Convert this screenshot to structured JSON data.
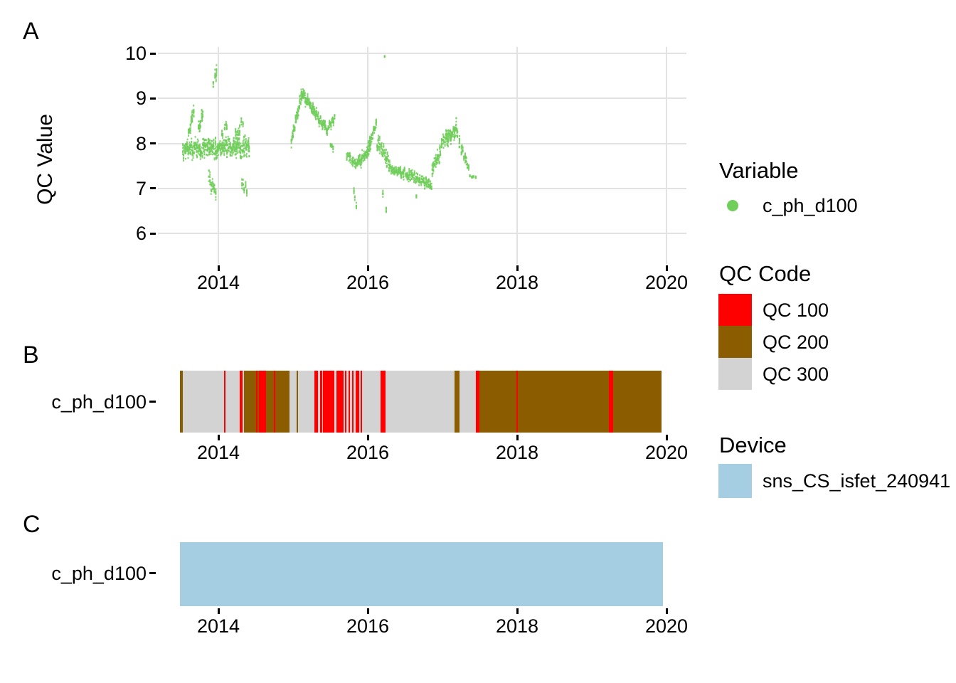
{
  "figure": {
    "panel_labels": [
      "A",
      "B",
      "C"
    ],
    "background": "#FFFFFF",
    "grid_color": "#E2E2E2",
    "tick_color": "#000000"
  },
  "chart_data": [
    {
      "id": "A",
      "type": "scatter",
      "title": "",
      "ylabel": "QC Value",
      "xlabel": "",
      "series_name": "c_ph_d100",
      "point_color": "#70CE5A",
      "x_ticks": [
        2014,
        2016,
        2018,
        2020
      ],
      "y_ticks": [
        6,
        7,
        8,
        9,
        10
      ],
      "x_data_range": [
        2013.52,
        2017.45
      ],
      "y_data_range": [
        6.35,
        9.97
      ],
      "grid": "major-only",
      "legend_position": "right",
      "clusters": [
        {
          "x0": 2013.52,
          "x1": 2014.42,
          "y0": 7.87,
          "y1": 7.92,
          "s": 0.2,
          "n": 650
        },
        {
          "x0": 2013.6,
          "x1": 2013.68,
          "y0": 8.25,
          "y1": 8.7,
          "s": 0.15,
          "n": 45
        },
        {
          "x0": 2013.73,
          "x1": 2013.8,
          "y0": 8.3,
          "y1": 8.75,
          "s": 0.15,
          "n": 40
        },
        {
          "x0": 2013.87,
          "x1": 2013.97,
          "y0": 7.25,
          "y1": 6.8,
          "s": 0.18,
          "n": 45
        },
        {
          "x0": 2013.93,
          "x1": 2013.99,
          "y0": 9.35,
          "y1": 9.7,
          "s": 0.15,
          "n": 25
        },
        {
          "x0": 2014.04,
          "x1": 2014.12,
          "y0": 8.15,
          "y1": 8.4,
          "s": 0.12,
          "n": 30
        },
        {
          "x0": 2014.22,
          "x1": 2014.33,
          "y0": 8.15,
          "y1": 8.5,
          "s": 0.14,
          "n": 40
        },
        {
          "x0": 2014.3,
          "x1": 2014.4,
          "y0": 7.15,
          "y1": 6.9,
          "s": 0.15,
          "n": 28
        },
        {
          "x0": 2014.97,
          "x1": 2015.12,
          "y0": 8.0,
          "y1": 9.15,
          "s": 0.12,
          "n": 110
        },
        {
          "x0": 2015.12,
          "x1": 2015.32,
          "y0": 9.1,
          "y1": 8.6,
          "s": 0.14,
          "n": 140
        },
        {
          "x0": 2015.32,
          "x1": 2015.46,
          "y0": 8.6,
          "y1": 8.3,
          "s": 0.12,
          "n": 90
        },
        {
          "x0": 2015.47,
          "x1": 2015.56,
          "y0": 8.35,
          "y1": 8.55,
          "s": 0.1,
          "n": 45
        },
        {
          "x0": 2015.5,
          "x1": 2015.54,
          "y0": 7.95,
          "y1": 7.9,
          "s": 0.08,
          "n": 15
        },
        {
          "x0": 2015.72,
          "x1": 2015.86,
          "y0": 7.75,
          "y1": 7.55,
          "s": 0.13,
          "n": 70
        },
        {
          "x0": 2015.8,
          "x1": 2015.85,
          "y0": 7.0,
          "y1": 6.6,
          "s": 0.1,
          "n": 15
        },
        {
          "x0": 2015.86,
          "x1": 2016.04,
          "y0": 7.5,
          "y1": 7.95,
          "s": 0.14,
          "n": 120
        },
        {
          "x0": 2016.0,
          "x1": 2016.12,
          "y0": 7.95,
          "y1": 8.45,
          "s": 0.12,
          "n": 70
        },
        {
          "x0": 2016.21,
          "x1": 2016.23,
          "y0": 9.95,
          "y1": 9.93,
          "s": 0.02,
          "n": 4
        },
        {
          "x0": 2016.12,
          "x1": 2016.3,
          "y0": 8.05,
          "y1": 7.5,
          "s": 0.18,
          "n": 110
        },
        {
          "x0": 2016.2,
          "x1": 2016.25,
          "y0": 6.9,
          "y1": 6.45,
          "s": 0.1,
          "n": 12
        },
        {
          "x0": 2016.3,
          "x1": 2016.62,
          "y0": 7.45,
          "y1": 7.25,
          "s": 0.11,
          "n": 190
        },
        {
          "x0": 2016.62,
          "x1": 2016.86,
          "y0": 7.25,
          "y1": 7.05,
          "s": 0.11,
          "n": 130
        },
        {
          "x0": 2016.63,
          "x1": 2016.67,
          "y0": 6.9,
          "y1": 6.8,
          "s": 0.05,
          "n": 8
        },
        {
          "x0": 2016.86,
          "x1": 2017.0,
          "y0": 7.35,
          "y1": 7.95,
          "s": 0.16,
          "n": 90
        },
        {
          "x0": 2017.0,
          "x1": 2017.2,
          "y0": 8.0,
          "y1": 8.35,
          "s": 0.18,
          "n": 140
        },
        {
          "x0": 2017.2,
          "x1": 2017.36,
          "y0": 8.15,
          "y1": 7.45,
          "s": 0.13,
          "n": 70
        },
        {
          "x0": 2017.36,
          "x1": 2017.45,
          "y0": 7.28,
          "y1": 7.25,
          "s": 0.03,
          "n": 30
        }
      ]
    },
    {
      "id": "B",
      "type": "segmented-bar",
      "row_label": "c_ph_d100",
      "x_ticks": [
        2014,
        2016,
        2018,
        2020
      ],
      "x_start": 2013.49,
      "x_end": 2019.93,
      "colors": {
        "QC 100": "#FF0000",
        "QC 200": "#8B5C00",
        "QC 300": "#D3D3D3"
      },
      "segments": [
        {
          "f0": 0.0,
          "f1": 0.0064,
          "code": "QC 200"
        },
        {
          "f0": 0.0064,
          "f1": 0.092,
          "code": "QC 300"
        },
        {
          "f0": 0.092,
          "f1": 0.095,
          "code": "QC 100"
        },
        {
          "f0": 0.095,
          "f1": 0.1245,
          "code": "QC 300"
        },
        {
          "f0": 0.1245,
          "f1": 0.1295,
          "code": "QC 100"
        },
        {
          "f0": 0.1295,
          "f1": 0.1325,
          "code": "QC 300"
        },
        {
          "f0": 0.1325,
          "f1": 0.158,
          "code": "QC 200"
        },
        {
          "f0": 0.158,
          "f1": 0.1615,
          "code": "QC 100"
        },
        {
          "f0": 0.1615,
          "f1": 0.1645,
          "code": "QC 200"
        },
        {
          "f0": 0.1645,
          "f1": 0.1787,
          "code": "QC 100"
        },
        {
          "f0": 0.1787,
          "f1": 0.1954,
          "code": "QC 200"
        },
        {
          "f0": 0.1954,
          "f1": 0.1984,
          "code": "QC 100"
        },
        {
          "f0": 0.1984,
          "f1": 0.227,
          "code": "QC 200"
        },
        {
          "f0": 0.227,
          "f1": 0.2418,
          "code": "QC 300"
        },
        {
          "f0": 0.2418,
          "f1": 0.2452,
          "code": "QC 200"
        },
        {
          "f0": 0.2452,
          "f1": 0.2796,
          "code": "QC 300"
        },
        {
          "f0": 0.2796,
          "f1": 0.2861,
          "code": "QC 100"
        },
        {
          "f0": 0.2861,
          "f1": 0.291,
          "code": "QC 300"
        },
        {
          "f0": 0.291,
          "f1": 0.2959,
          "code": "QC 100"
        },
        {
          "f0": 0.2959,
          "f1": 0.2974,
          "code": "QC 300"
        },
        {
          "f0": 0.2974,
          "f1": 0.3206,
          "code": "QC 100"
        },
        {
          "f0": 0.3206,
          "f1": 0.3245,
          "code": "QC 300"
        },
        {
          "f0": 0.3245,
          "f1": 0.339,
          "code": "QC 100"
        },
        {
          "f0": 0.339,
          "f1": 0.3423,
          "code": "QC 300"
        },
        {
          "f0": 0.3423,
          "f1": 0.3452,
          "code": "QC 100"
        },
        {
          "f0": 0.3452,
          "f1": 0.3501,
          "code": "QC 300"
        },
        {
          "f0": 0.3501,
          "f1": 0.3531,
          "code": "QC 100"
        },
        {
          "f0": 0.3531,
          "f1": 0.357,
          "code": "QC 300"
        },
        {
          "f0": 0.357,
          "f1": 0.36,
          "code": "QC 100"
        },
        {
          "f0": 0.36,
          "f1": 0.3649,
          "code": "QC 300"
        },
        {
          "f0": 0.3649,
          "f1": 0.3718,
          "code": "QC 100"
        },
        {
          "f0": 0.3718,
          "f1": 0.3748,
          "code": "QC 300"
        },
        {
          "f0": 0.3748,
          "f1": 0.3786,
          "code": "QC 100"
        },
        {
          "f0": 0.3786,
          "f1": 0.4166,
          "code": "QC 300"
        },
        {
          "f0": 0.4166,
          "f1": 0.4265,
          "code": "QC 100"
        },
        {
          "f0": 0.4265,
          "f1": 0.5707,
          "code": "QC 300"
        },
        {
          "f0": 0.5707,
          "f1": 0.5801,
          "code": "QC 200"
        },
        {
          "f0": 0.5801,
          "f1": 0.6145,
          "code": "QC 300"
        },
        {
          "f0": 0.6145,
          "f1": 0.6223,
          "code": "QC 100"
        },
        {
          "f0": 0.6223,
          "f1": 0.6987,
          "code": "QC 200"
        },
        {
          "f0": 0.6987,
          "f1": 0.7021,
          "code": "QC 100"
        },
        {
          "f0": 0.7021,
          "f1": 0.8903,
          "code": "QC 200"
        },
        {
          "f0": 0.8903,
          "f1": 0.9,
          "code": "QC 100"
        },
        {
          "f0": 0.9,
          "f1": 1.0,
          "code": "QC 200"
        }
      ]
    },
    {
      "id": "C",
      "type": "bar",
      "row_label": "c_ph_d100",
      "x_ticks": [
        2014,
        2016,
        2018,
        2020
      ],
      "x_start": 2013.49,
      "x_end": 2019.95,
      "device": "sns_CS_isfet_240941",
      "color": "#A6CEE3"
    }
  ],
  "legend": {
    "variable": {
      "title": "Variable",
      "items": [
        {
          "label": "c_ph_d100",
          "color": "#70CE5A",
          "marker": "dot"
        }
      ]
    },
    "qc": {
      "title": "QC Code",
      "items": [
        {
          "label": "QC 100",
          "color": "#FF0000"
        },
        {
          "label": "QC 200",
          "color": "#8B5C00"
        },
        {
          "label": "QC 300",
          "color": "#D3D3D3"
        }
      ]
    },
    "device": {
      "title": "Device",
      "items": [
        {
          "label": "sns_CS_isfet_240941",
          "color": "#A6CEE3"
        }
      ]
    }
  }
}
